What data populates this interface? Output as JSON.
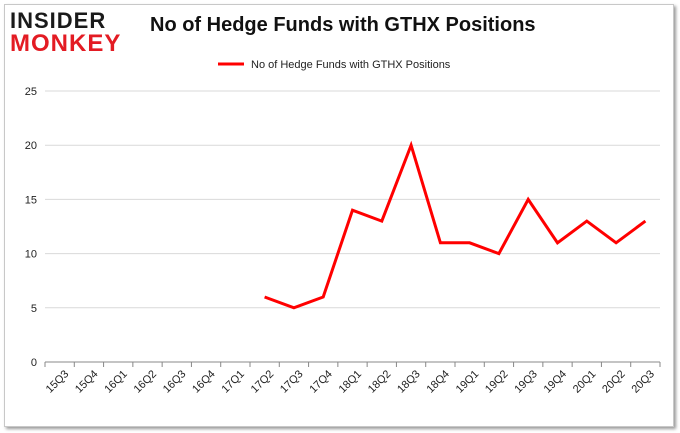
{
  "logo": {
    "line1": "INSIDER",
    "line2": "MONKEY"
  },
  "chart_data": {
    "type": "line",
    "title": "No of Hedge Funds with GTHX Positions",
    "categories": [
      "15Q3",
      "15Q4",
      "16Q1",
      "16Q2",
      "16Q3",
      "16Q4",
      "17Q1",
      "17Q2",
      "17Q3",
      "17Q4",
      "18Q1",
      "18Q2",
      "18Q3",
      "18Q4",
      "19Q1",
      "19Q2",
      "19Q3",
      "19Q4",
      "20Q1",
      "20Q2",
      "20Q3"
    ],
    "series": [
      {
        "name": "No of Hedge Funds with GTHX Positions",
        "values": [
          null,
          null,
          null,
          null,
          null,
          null,
          null,
          6,
          5,
          6,
          14,
          13,
          20,
          11,
          11,
          10,
          15,
          11,
          13,
          11,
          13
        ],
        "color": "#ff0000"
      }
    ],
    "ylim": [
      0,
      25
    ],
    "yticks": [
      0,
      5,
      10,
      15,
      20,
      25
    ],
    "grid": true,
    "legend_position": "top-center",
    "xlabel": "",
    "ylabel": ""
  }
}
